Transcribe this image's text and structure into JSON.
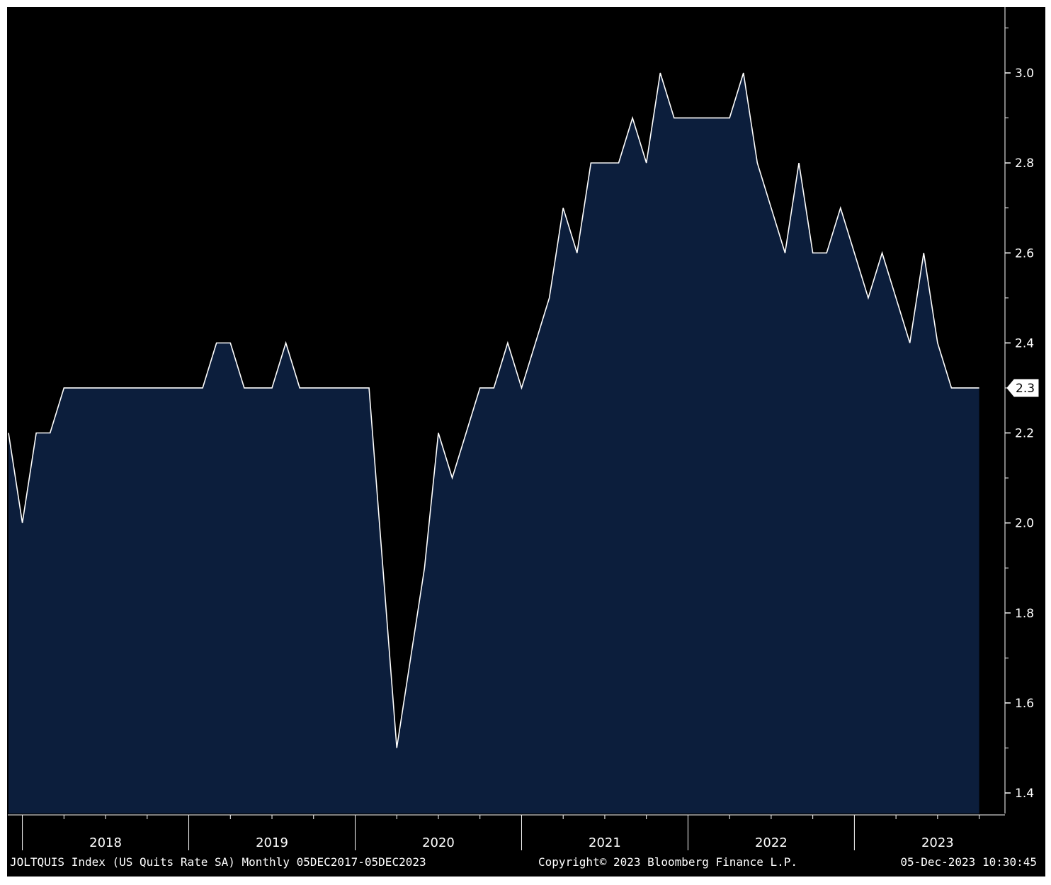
{
  "chart_data": {
    "type": "area",
    "yticks": [
      "1.4",
      "1.6",
      "1.8",
      "2.0",
      "2.2",
      "2.4",
      "2.6",
      "2.8",
      "3.0"
    ],
    "ylim": [
      1.35,
      3.15
    ],
    "year_labels": [
      "2018",
      "2019",
      "2020",
      "2021",
      "2022",
      "2023"
    ],
    "last_value": "2.3",
    "series": [
      {
        "x": [
          "2017-12",
          "2018-01",
          "2018-02",
          "2018-03",
          "2018-04",
          "2018-05",
          "2018-06",
          "2018-07",
          "2018-08",
          "2018-09",
          "2018-10",
          "2018-11",
          "2018-12",
          "2019-01",
          "2019-02",
          "2019-03",
          "2019-04",
          "2019-05",
          "2019-06",
          "2019-07",
          "2019-08",
          "2019-09",
          "2019-10",
          "2019-11",
          "2019-12",
          "2020-01",
          "2020-02",
          "2020-03",
          "2020-04",
          "2020-05",
          "2020-06",
          "2020-07",
          "2020-08",
          "2020-09",
          "2020-10",
          "2020-11",
          "2020-12",
          "2021-01",
          "2021-02",
          "2021-03",
          "2021-04",
          "2021-05",
          "2021-06",
          "2021-07",
          "2021-08",
          "2021-09",
          "2021-10",
          "2021-11",
          "2021-12",
          "2022-01",
          "2022-02",
          "2022-03",
          "2022-04",
          "2022-05",
          "2022-06",
          "2022-07",
          "2022-08",
          "2022-09",
          "2022-10",
          "2022-11",
          "2022-12",
          "2023-01",
          "2023-02",
          "2023-03",
          "2023-04",
          "2023-05",
          "2023-06",
          "2023-07",
          "2023-08",
          "2023-09",
          "2023-10"
        ],
        "values": [
          2.2,
          2.0,
          2.2,
          2.2,
          2.3,
          2.3,
          2.3,
          2.3,
          2.3,
          2.3,
          2.3,
          2.3,
          2.3,
          2.3,
          2.3,
          2.4,
          2.4,
          2.3,
          2.3,
          2.3,
          2.4,
          2.3,
          2.3,
          2.3,
          2.3,
          2.3,
          2.3,
          1.9,
          1.5,
          1.7,
          1.9,
          2.2,
          2.1,
          2.2,
          2.3,
          2.3,
          2.4,
          2.3,
          2.4,
          2.5,
          2.7,
          2.6,
          2.8,
          2.8,
          2.8,
          2.9,
          2.8,
          3.0,
          2.9,
          2.9,
          2.9,
          2.9,
          2.9,
          3.0,
          2.8,
          2.7,
          2.6,
          2.8,
          2.6,
          2.6,
          2.7,
          2.6,
          2.5,
          2.6,
          2.5,
          2.4,
          2.6,
          2.4,
          2.3,
          2.3,
          2.3
        ]
      }
    ]
  },
  "footer": {
    "left": "JOLTQUIS Index (US Quits Rate SA)  Monthly 05DEC2017-05DEC2023",
    "center": "Copyright© 2023 Bloomberg Finance L.P.",
    "right": "05-Dec-2023 10:30:45"
  },
  "colors": {
    "background": "#000000",
    "area_fill": "#0c1e3c",
    "line": "#ffffff"
  }
}
